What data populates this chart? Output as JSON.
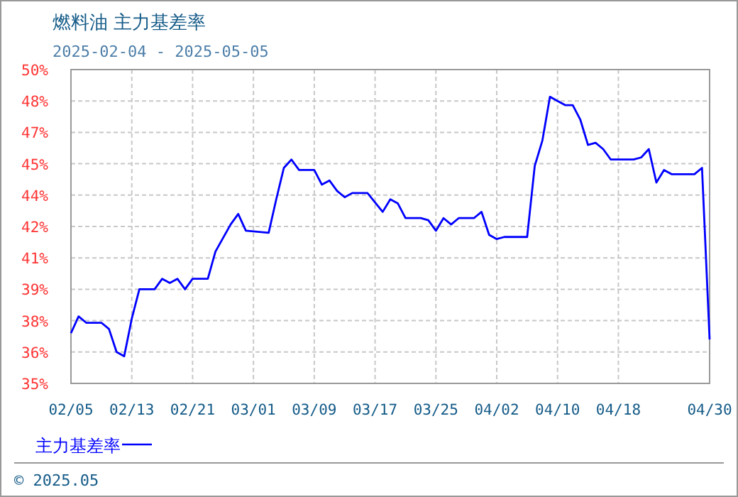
{
  "chart_data": {
    "type": "line",
    "title": "燃料油  主力基差率",
    "subtitle": "2025-02-04 - 2025-05-05",
    "annotations": [
      "© 2025.05"
    ],
    "x": [
      "2025-02-05",
      "2025-02-06",
      "2025-02-07",
      "2025-02-09",
      "2025-02-10",
      "2025-02-11",
      "2025-02-12",
      "2025-02-13",
      "2025-02-14",
      "2025-02-16",
      "2025-02-17",
      "2025-02-18",
      "2025-02-19",
      "2025-02-20",
      "2025-02-21",
      "2025-02-23",
      "2025-02-24",
      "2025-02-26",
      "2025-02-27",
      "2025-02-28",
      "2025-03-03",
      "2025-03-04",
      "2025-03-05",
      "2025-03-06",
      "2025-03-07",
      "2025-03-09",
      "2025-03-10",
      "2025-03-11",
      "2025-03-12",
      "2025-03-13",
      "2025-03-14",
      "2025-03-16",
      "2025-03-18",
      "2025-03-19",
      "2025-03-20",
      "2025-03-21",
      "2025-03-23",
      "2025-03-24",
      "2025-03-25",
      "2025-03-26",
      "2025-03-27",
      "2025-03-28",
      "2025-03-30",
      "2025-03-31",
      "2025-04-01",
      "2025-04-02",
      "2025-04-03",
      "2025-04-06",
      "2025-04-07",
      "2025-04-08",
      "2025-04-09",
      "2025-04-10",
      "2025-04-11",
      "2025-04-12",
      "2025-04-13",
      "2025-04-14",
      "2025-04-15",
      "2025-04-16",
      "2025-04-17",
      "2025-04-20",
      "2025-04-21",
      "2025-04-22",
      "2025-04-23",
      "2025-04-24",
      "2025-04-25",
      "2025-04-28",
      "2025-04-29",
      "2025-04-30"
    ],
    "series": [
      {
        "name": "主力基差率",
        "color": "#0000ff",
        "values": [
          37.4,
          38.2,
          37.9,
          37.9,
          37.6,
          36.5,
          36.3,
          38.1,
          39.5,
          39.5,
          40.0,
          39.8,
          40.0,
          39.5,
          40.0,
          40.0,
          41.3,
          42.6,
          43.1,
          42.3,
          42.2,
          43.8,
          45.3,
          45.7,
          45.2,
          45.2,
          44.5,
          44.7,
          44.2,
          43.9,
          44.1,
          44.1,
          43.2,
          43.8,
          43.6,
          42.9,
          42.9,
          42.8,
          42.3,
          42.9,
          42.6,
          42.9,
          42.9,
          43.2,
          42.1,
          41.9,
          42.0,
          42.0,
          45.4,
          46.6,
          48.7,
          48.5,
          48.3,
          48.3,
          47.6,
          46.4,
          46.5,
          46.2,
          45.7,
          45.7,
          45.8,
          46.2,
          44.6,
          45.2,
          45.0,
          45.0,
          45.3,
          37.1
        ]
      }
    ],
    "xlim": [
      "2025-02-05",
      "2025-04-30"
    ],
    "xticks": [
      {
        "value": "2025-02-05",
        "label": "02/05"
      },
      {
        "value": "2025-02-13",
        "label": "02/13"
      },
      {
        "value": "2025-02-21",
        "label": "02/21"
      },
      {
        "value": "2025-03-01",
        "label": "03/01"
      },
      {
        "value": "2025-03-09",
        "label": "03/09"
      },
      {
        "value": "2025-03-17",
        "label": "03/17"
      },
      {
        "value": "2025-03-25",
        "label": "03/25"
      },
      {
        "value": "2025-04-02",
        "label": "04/02"
      },
      {
        "value": "2025-04-10",
        "label": "04/10"
      },
      {
        "value": "2025-04-18",
        "label": "04/18"
      },
      {
        "value": "2025-04-30",
        "label": "04/30"
      }
    ],
    "ylim": [
      35,
      50
    ],
    "yticks": [
      {
        "value": 35,
        "label": "35%"
      },
      {
        "value": 36.5,
        "label": "36%"
      },
      {
        "value": 38,
        "label": "38%"
      },
      {
        "value": 39.5,
        "label": "39%"
      },
      {
        "value": 41,
        "label": "41%"
      },
      {
        "value": 42.5,
        "label": "42%"
      },
      {
        "value": 44,
        "label": "44%"
      },
      {
        "value": 45.5,
        "label": "45%"
      },
      {
        "value": 47,
        "label": "47%"
      },
      {
        "value": 48.5,
        "label": "48%"
      },
      {
        "value": 50,
        "label": "50%"
      }
    ],
    "grid": true,
    "legend": "bottom",
    "line_style": "solid",
    "marker": "none"
  }
}
